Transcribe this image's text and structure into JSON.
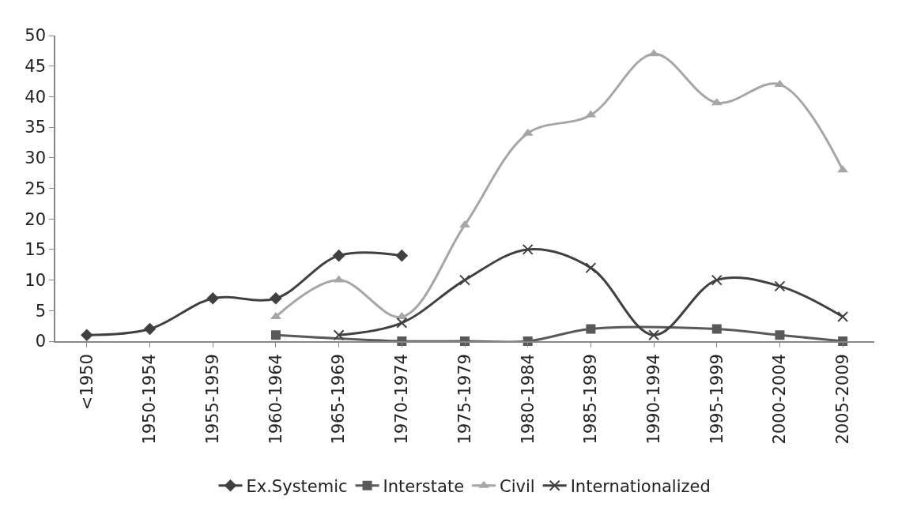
{
  "chart_data": {
    "type": "line",
    "categories": [
      "<1950",
      "1950-1954",
      "1955-1959",
      "1960-1964",
      "1965-1969",
      "1970-1974",
      "1975-1979",
      "1980-1984",
      "1985-1989",
      "1990-1994",
      "1995-1999",
      "2000-2004",
      "2005-2009"
    ],
    "series": [
      {
        "name": "Ex.Systemic",
        "color": "#404040",
        "marker": "diamond",
        "values": [
          1,
          2,
          7,
          7,
          14,
          14,
          null,
          null,
          null,
          null,
          null,
          null,
          null
        ]
      },
      {
        "name": "Interstate",
        "color": "#595959",
        "marker": "square",
        "values": [
          null,
          null,
          null,
          1,
          null,
          0,
          0,
          0,
          2,
          null,
          2,
          1,
          0
        ]
      },
      {
        "name": "Civil",
        "color": "#a6a6a6",
        "marker": "triangle",
        "values": [
          null,
          null,
          null,
          4,
          10,
          4,
          19,
          34,
          37,
          47,
          39,
          42,
          28
        ]
      },
      {
        "name": "Internationalized",
        "color": "#404040",
        "marker": "cross",
        "values": [
          null,
          null,
          null,
          null,
          1,
          3,
          10,
          15,
          12,
          1,
          10,
          9,
          4
        ]
      }
    ],
    "ylim": [
      0,
      50
    ],
    "yticks": [
      0,
      5,
      10,
      15,
      20,
      25,
      30,
      35,
      40,
      45,
      50
    ],
    "grid": false,
    "legend": "bottom"
  }
}
